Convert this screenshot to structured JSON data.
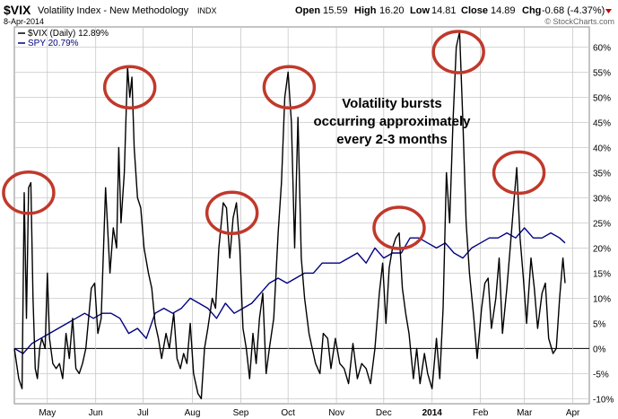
{
  "header": {
    "symbol": "$VIX",
    "name": "Volatility Index - New Methodology",
    "exchange": "INDX",
    "date": "8-Apr-2014",
    "watermark": "© StockCharts.com",
    "open_label": "Open",
    "open_value": "15.59",
    "high_label": "High",
    "high_value": "16.20",
    "low_label": "Low",
    "low_value": "14.81",
    "close_label": "Close",
    "close_value": "14.89",
    "chg_label": "Chg",
    "chg_value": "-0.68 (-4.37%)"
  },
  "annotation": [
    "Volatility bursts",
    "occurring approximately",
    "every 2-3 months"
  ],
  "chart_data": {
    "type": "line",
    "x_unit": "weeks since first plotted week",
    "xlim": [
      0,
      52.3
    ],
    "ylim": [
      -11,
      64
    ],
    "y_ticks": [
      -10,
      -5,
      0,
      5,
      10,
      15,
      20,
      25,
      30,
      35,
      40,
      45,
      50,
      55,
      60
    ],
    "y_tick_labels": [
      "-10%",
      "-5%",
      "0%",
      "5%",
      "10%",
      "15%",
      "20%",
      "25%",
      "30%",
      "35%",
      "40%",
      "45%",
      "50%",
      "55%",
      "60%"
    ],
    "x_ticks": [
      {
        "label": "May",
        "x": 3.0
      },
      {
        "label": "Jun",
        "x": 7.4
      },
      {
        "label": "Jul",
        "x": 11.7
      },
      {
        "label": "Aug",
        "x": 16.2
      },
      {
        "label": "Sep",
        "x": 20.6
      },
      {
        "label": "Oct",
        "x": 24.9
      },
      {
        "label": "Nov",
        "x": 29.3
      },
      {
        "label": "Dec",
        "x": 33.6
      },
      {
        "label": "2014",
        "x": 38.0
      },
      {
        "label": "Feb",
        "x": 42.4
      },
      {
        "label": "Mar",
        "x": 46.4
      },
      {
        "label": "Apr",
        "x": 50.8
      }
    ],
    "grid": true,
    "zero_line": true,
    "legend_position": "top-left",
    "series": [
      {
        "name": "$VIX (Daily) 12.89%",
        "color": "#000000",
        "points": [
          [
            0,
            0
          ],
          [
            0.4,
            -6
          ],
          [
            0.7,
            -8
          ],
          [
            0.9,
            31
          ],
          [
            1.1,
            6
          ],
          [
            1.3,
            32
          ],
          [
            1.5,
            33
          ],
          [
            1.7,
            10
          ],
          [
            1.9,
            -4
          ],
          [
            2.1,
            -6
          ],
          [
            2.3,
            0
          ],
          [
            2.5,
            2
          ],
          [
            2.8,
            0
          ],
          [
            3.0,
            15
          ],
          [
            3.2,
            2
          ],
          [
            3.5,
            -3
          ],
          [
            3.8,
            -4
          ],
          [
            4.1,
            -3
          ],
          [
            4.4,
            -6
          ],
          [
            4.7,
            3
          ],
          [
            5.0,
            -2
          ],
          [
            5.3,
            6
          ],
          [
            5.6,
            -4
          ],
          [
            5.9,
            -5
          ],
          [
            6.2,
            -3
          ],
          [
            6.5,
            0
          ],
          [
            6.8,
            7
          ],
          [
            7.0,
            12
          ],
          [
            7.3,
            13
          ],
          [
            7.6,
            3
          ],
          [
            7.9,
            6
          ],
          [
            8.3,
            32
          ],
          [
            8.7,
            15
          ],
          [
            9.0,
            24
          ],
          [
            9.3,
            20
          ],
          [
            9.5,
            40
          ],
          [
            9.7,
            25
          ],
          [
            10.0,
            35
          ],
          [
            10.3,
            56
          ],
          [
            10.5,
            50
          ],
          [
            10.7,
            54
          ],
          [
            10.9,
            40
          ],
          [
            11.2,
            30
          ],
          [
            11.5,
            28
          ],
          [
            11.8,
            20
          ],
          [
            12.2,
            15
          ],
          [
            12.5,
            12
          ],
          [
            12.8,
            5
          ],
          [
            13.1,
            2
          ],
          [
            13.4,
            -2
          ],
          [
            13.8,
            3
          ],
          [
            14.1,
            0
          ],
          [
            14.5,
            7
          ],
          [
            14.8,
            -2
          ],
          [
            15.1,
            -4
          ],
          [
            15.4,
            -1
          ],
          [
            15.7,
            -3
          ],
          [
            16.0,
            5
          ],
          [
            16.3,
            -5
          ],
          [
            16.7,
            -9
          ],
          [
            17.0,
            -10
          ],
          [
            17.3,
            0
          ],
          [
            17.6,
            4
          ],
          [
            18.0,
            10
          ],
          [
            18.3,
            8
          ],
          [
            18.6,
            20
          ],
          [
            19.0,
            29
          ],
          [
            19.3,
            28
          ],
          [
            19.6,
            18
          ],
          [
            19.9,
            26
          ],
          [
            20.2,
            29
          ],
          [
            20.5,
            20
          ],
          [
            20.8,
            4
          ],
          [
            21.1,
            0
          ],
          [
            21.4,
            -6
          ],
          [
            21.7,
            3
          ],
          [
            22.0,
            -3
          ],
          [
            22.3,
            6
          ],
          [
            22.6,
            11
          ],
          [
            22.9,
            -5
          ],
          [
            23.2,
            0
          ],
          [
            23.6,
            6
          ],
          [
            24.0,
            23
          ],
          [
            24.3,
            33
          ],
          [
            24.6,
            50
          ],
          [
            24.9,
            55
          ],
          [
            25.2,
            45
          ],
          [
            25.5,
            20
          ],
          [
            25.8,
            46
          ],
          [
            26.1,
            18
          ],
          [
            26.4,
            10
          ],
          [
            26.8,
            3
          ],
          [
            27.1,
            0
          ],
          [
            27.4,
            -3
          ],
          [
            27.8,
            -5
          ],
          [
            28.1,
            3
          ],
          [
            28.5,
            2
          ],
          [
            28.8,
            -4
          ],
          [
            29.2,
            2
          ],
          [
            29.6,
            -3
          ],
          [
            30.0,
            -4
          ],
          [
            30.4,
            -7
          ],
          [
            30.8,
            1
          ],
          [
            31.2,
            -6
          ],
          [
            31.6,
            -3
          ],
          [
            32.0,
            -4
          ],
          [
            32.4,
            -7
          ],
          [
            32.8,
            0
          ],
          [
            33.2,
            11
          ],
          [
            33.5,
            17
          ],
          [
            33.8,
            5
          ],
          [
            34.1,
            16
          ],
          [
            34.4,
            20
          ],
          [
            34.7,
            22
          ],
          [
            35.0,
            23
          ],
          [
            35.3,
            12
          ],
          [
            35.6,
            7
          ],
          [
            35.9,
            3
          ],
          [
            36.3,
            -6
          ],
          [
            36.6,
            0
          ],
          [
            36.9,
            -7
          ],
          [
            37.3,
            -1
          ],
          [
            37.6,
            -5
          ],
          [
            38.0,
            -8
          ],
          [
            38.4,
            2
          ],
          [
            38.7,
            -6
          ],
          [
            39.0,
            8
          ],
          [
            39.3,
            35
          ],
          [
            39.6,
            25
          ],
          [
            39.9,
            45
          ],
          [
            40.2,
            60
          ],
          [
            40.5,
            63
          ],
          [
            40.8,
            45
          ],
          [
            41.1,
            25
          ],
          [
            41.4,
            15
          ],
          [
            41.8,
            6
          ],
          [
            42.1,
            -2
          ],
          [
            42.5,
            8
          ],
          [
            42.8,
            13
          ],
          [
            43.1,
            14
          ],
          [
            43.4,
            4
          ],
          [
            43.8,
            10
          ],
          [
            44.1,
            18
          ],
          [
            44.4,
            3
          ],
          [
            44.8,
            12
          ],
          [
            45.1,
            20
          ],
          [
            45.4,
            28
          ],
          [
            45.7,
            36
          ],
          [
            46.0,
            22
          ],
          [
            46.3,
            14
          ],
          [
            46.6,
            5
          ],
          [
            47.0,
            18
          ],
          [
            47.3,
            12
          ],
          [
            47.6,
            4
          ],
          [
            48.0,
            11
          ],
          [
            48.3,
            13
          ],
          [
            48.6,
            2
          ],
          [
            49.0,
            -1
          ],
          [
            49.3,
            0
          ],
          [
            49.6,
            10
          ],
          [
            49.9,
            18
          ],
          [
            50.1,
            13
          ]
        ]
      },
      {
        "name": "SPY 20.79%",
        "color": "#000080",
        "points": [
          [
            0,
            0
          ],
          [
            0.8,
            -1
          ],
          [
            1.6,
            1
          ],
          [
            2.4,
            2
          ],
          [
            3.2,
            3
          ],
          [
            4.0,
            4
          ],
          [
            4.8,
            5
          ],
          [
            5.6,
            6
          ],
          [
            6.4,
            7
          ],
          [
            7.2,
            6
          ],
          [
            8.0,
            7
          ],
          [
            8.8,
            7
          ],
          [
            9.6,
            6
          ],
          [
            10.4,
            3
          ],
          [
            11.2,
            4
          ],
          [
            12.0,
            2
          ],
          [
            12.8,
            7
          ],
          [
            13.6,
            8
          ],
          [
            14.4,
            7
          ],
          [
            15.2,
            8
          ],
          [
            16.0,
            10
          ],
          [
            16.8,
            9
          ],
          [
            17.6,
            8
          ],
          [
            18.4,
            6
          ],
          [
            19.2,
            9
          ],
          [
            20.0,
            7
          ],
          [
            20.8,
            8
          ],
          [
            21.6,
            9
          ],
          [
            22.4,
            11
          ],
          [
            23.2,
            13
          ],
          [
            24.0,
            14
          ],
          [
            24.8,
            13
          ],
          [
            25.6,
            14
          ],
          [
            26.4,
            15
          ],
          [
            27.2,
            15
          ],
          [
            28.0,
            17
          ],
          [
            28.8,
            17
          ],
          [
            29.6,
            17
          ],
          [
            30.4,
            18
          ],
          [
            31.2,
            19
          ],
          [
            32.0,
            17
          ],
          [
            32.8,
            20
          ],
          [
            33.6,
            18
          ],
          [
            34.4,
            19
          ],
          [
            35.2,
            19
          ],
          [
            36.0,
            22
          ],
          [
            36.8,
            22
          ],
          [
            37.6,
            21
          ],
          [
            38.4,
            20
          ],
          [
            39.2,
            21
          ],
          [
            40.0,
            19
          ],
          [
            40.8,
            18
          ],
          [
            41.6,
            20
          ],
          [
            42.4,
            21
          ],
          [
            43.2,
            22
          ],
          [
            44.0,
            22
          ],
          [
            44.8,
            23
          ],
          [
            45.6,
            22
          ],
          [
            46.4,
            24
          ],
          [
            47.2,
            22
          ],
          [
            48.0,
            22
          ],
          [
            48.8,
            23
          ],
          [
            49.6,
            22
          ],
          [
            50.1,
            21
          ]
        ]
      }
    ],
    "highlights": [
      {
        "x": 1.3,
        "y": 31
      },
      {
        "x": 10.5,
        "y": 52
      },
      {
        "x": 19.8,
        "y": 27
      },
      {
        "x": 25.0,
        "y": 52
      },
      {
        "x": 35.0,
        "y": 24
      },
      {
        "x": 40.4,
        "y": 59
      },
      {
        "x": 45.9,
        "y": 35
      }
    ],
    "highlight_color": "#c0392b"
  }
}
